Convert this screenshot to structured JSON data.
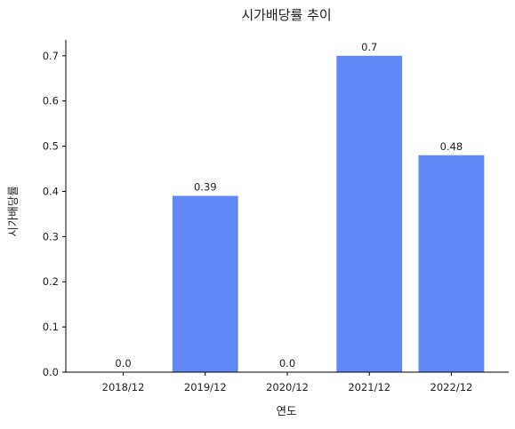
{
  "chart_data": {
    "type": "bar",
    "title": "시가배당률 추이",
    "xlabel": "연도",
    "ylabel": "시가배당률",
    "categories": [
      "2018/12",
      "2019/12",
      "2020/12",
      "2021/12",
      "2022/12"
    ],
    "values": [
      0.0,
      0.39,
      0.0,
      0.7,
      0.48
    ],
    "data_labels": [
      "0.0",
      "0.39",
      "0.0",
      "0.7",
      "0.48"
    ],
    "ylim": [
      0,
      0.735
    ],
    "yticks": [
      0.0,
      0.1,
      0.2,
      0.3,
      0.4,
      0.5,
      0.6,
      0.7
    ],
    "ytick_labels": [
      "0.0",
      "0.1",
      "0.2",
      "0.3",
      "0.4",
      "0.5",
      "0.6",
      "0.7"
    ],
    "bar_color": "#5f87f6",
    "grid": false,
    "spines": [
      "left",
      "bottom"
    ]
  }
}
